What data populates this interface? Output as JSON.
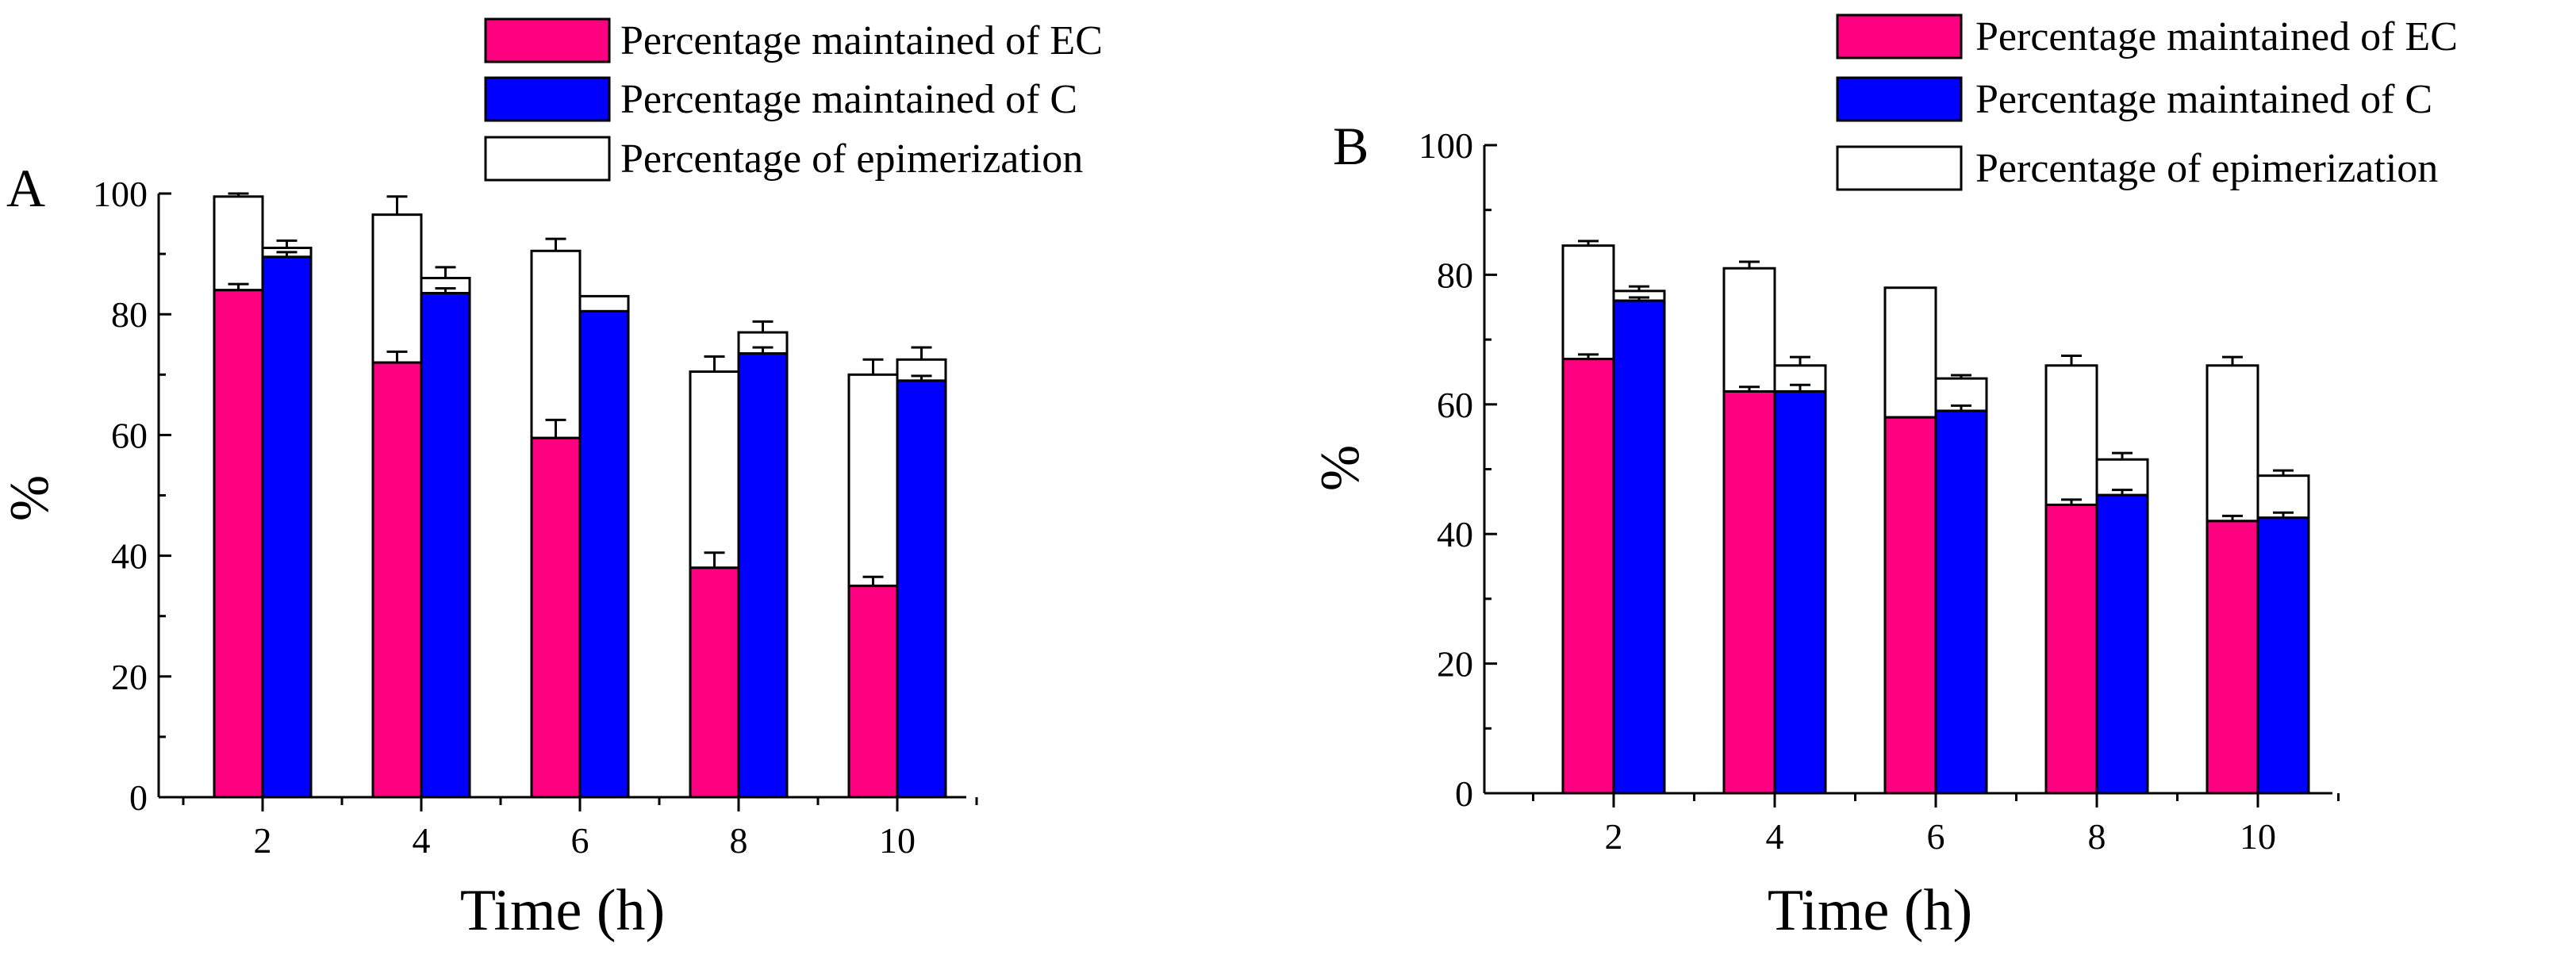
{
  "chart_data": [
    {
      "id": "A",
      "panel_label": "A",
      "type": "bar",
      "stacked": true,
      "categories": [
        "2",
        "4",
        "6",
        "8",
        "10"
      ],
      "xlabel": "Time (h)",
      "ylabel": "%",
      "ylim": [
        0,
        100
      ],
      "yticks": [
        "0",
        "20",
        "40",
        "60",
        "80",
        "100"
      ],
      "series": [
        {
          "name": "Percentage maintained of EC",
          "group": "EC",
          "role": "maintained",
          "color": "#ff0080",
          "values": [
            84,
            72,
            59.5,
            38,
            35
          ],
          "errors": [
            1,
            1.8,
            3,
            2.5,
            1.5
          ]
        },
        {
          "name": "Percentage maintained of C",
          "group": "C",
          "role": "maintained",
          "color": "#0000ff",
          "values": [
            89.5,
            83.5,
            80.5,
            73.5,
            69
          ],
          "errors": [
            0.8,
            0.8,
            0,
            1,
            0.8
          ]
        },
        {
          "name": "Percentage of epimerization",
          "group": "EC",
          "role": "epimerization",
          "color": "#ffffff",
          "values": [
            15.5,
            24.5,
            31,
            32.5,
            35
          ],
          "errors": [
            0.5,
            3,
            2,
            2.5,
            2.5
          ]
        },
        {
          "name": "Percentage of epimerization",
          "group": "C",
          "role": "epimerization",
          "color": "#ffffff",
          "values": [
            1.5,
            2.5,
            2.5,
            3.5,
            3.5
          ],
          "errors": [
            1.2,
            1.8,
            0,
            1.8,
            2
          ]
        }
      ],
      "legend": [
        {
          "label": "Percentage maintained of EC",
          "color": "#ff0080"
        },
        {
          "label": "Percentage maintained of C",
          "color": "#0000ff"
        },
        {
          "label": "Percentage of epimerization",
          "color": "#ffffff"
        }
      ],
      "legend_position": "top-right"
    },
    {
      "id": "B",
      "panel_label": "B",
      "type": "bar",
      "stacked": true,
      "categories": [
        "2",
        "4",
        "6",
        "8",
        "10"
      ],
      "xlabel": "Time (h)",
      "ylabel": "%",
      "ylim": [
        0,
        100
      ],
      "yticks": [
        "0",
        "20",
        "40",
        "60",
        "80",
        "100"
      ],
      "series": [
        {
          "name": "Percentage maintained of EC",
          "group": "EC",
          "role": "maintained",
          "color": "#ff0080",
          "values": [
            67,
            62,
            58,
            44.5,
            42
          ],
          "errors": [
            0.7,
            0.7,
            0,
            0.8,
            0.8
          ]
        },
        {
          "name": "Percentage maintained of C",
          "group": "C",
          "role": "maintained",
          "color": "#0000ff",
          "values": [
            76,
            62,
            59,
            46,
            42.5
          ],
          "errors": [
            0.5,
            1,
            0.8,
            0.8,
            0.8
          ]
        },
        {
          "name": "Percentage of epimerization",
          "group": "EC",
          "role": "epimerization",
          "color": "#ffffff",
          "values": [
            17.5,
            19,
            20,
            21.5,
            24
          ],
          "errors": [
            0.7,
            1,
            0,
            1.5,
            1.3
          ]
        },
        {
          "name": "Percentage of epimerization",
          "group": "C",
          "role": "epimerization",
          "color": "#ffffff",
          "values": [
            1.5,
            4,
            5,
            5.5,
            6.5
          ],
          "errors": [
            0.7,
            1.3,
            0.5,
            1,
            0.8
          ]
        }
      ],
      "legend": [
        {
          "label": "Percentage maintained of EC",
          "color": "#ff0080"
        },
        {
          "label": "Percentage maintained of C",
          "color": "#0000ff"
        },
        {
          "label": "Percentage of epimerization",
          "color": "#ffffff"
        }
      ],
      "legend_position": "top-right"
    }
  ]
}
